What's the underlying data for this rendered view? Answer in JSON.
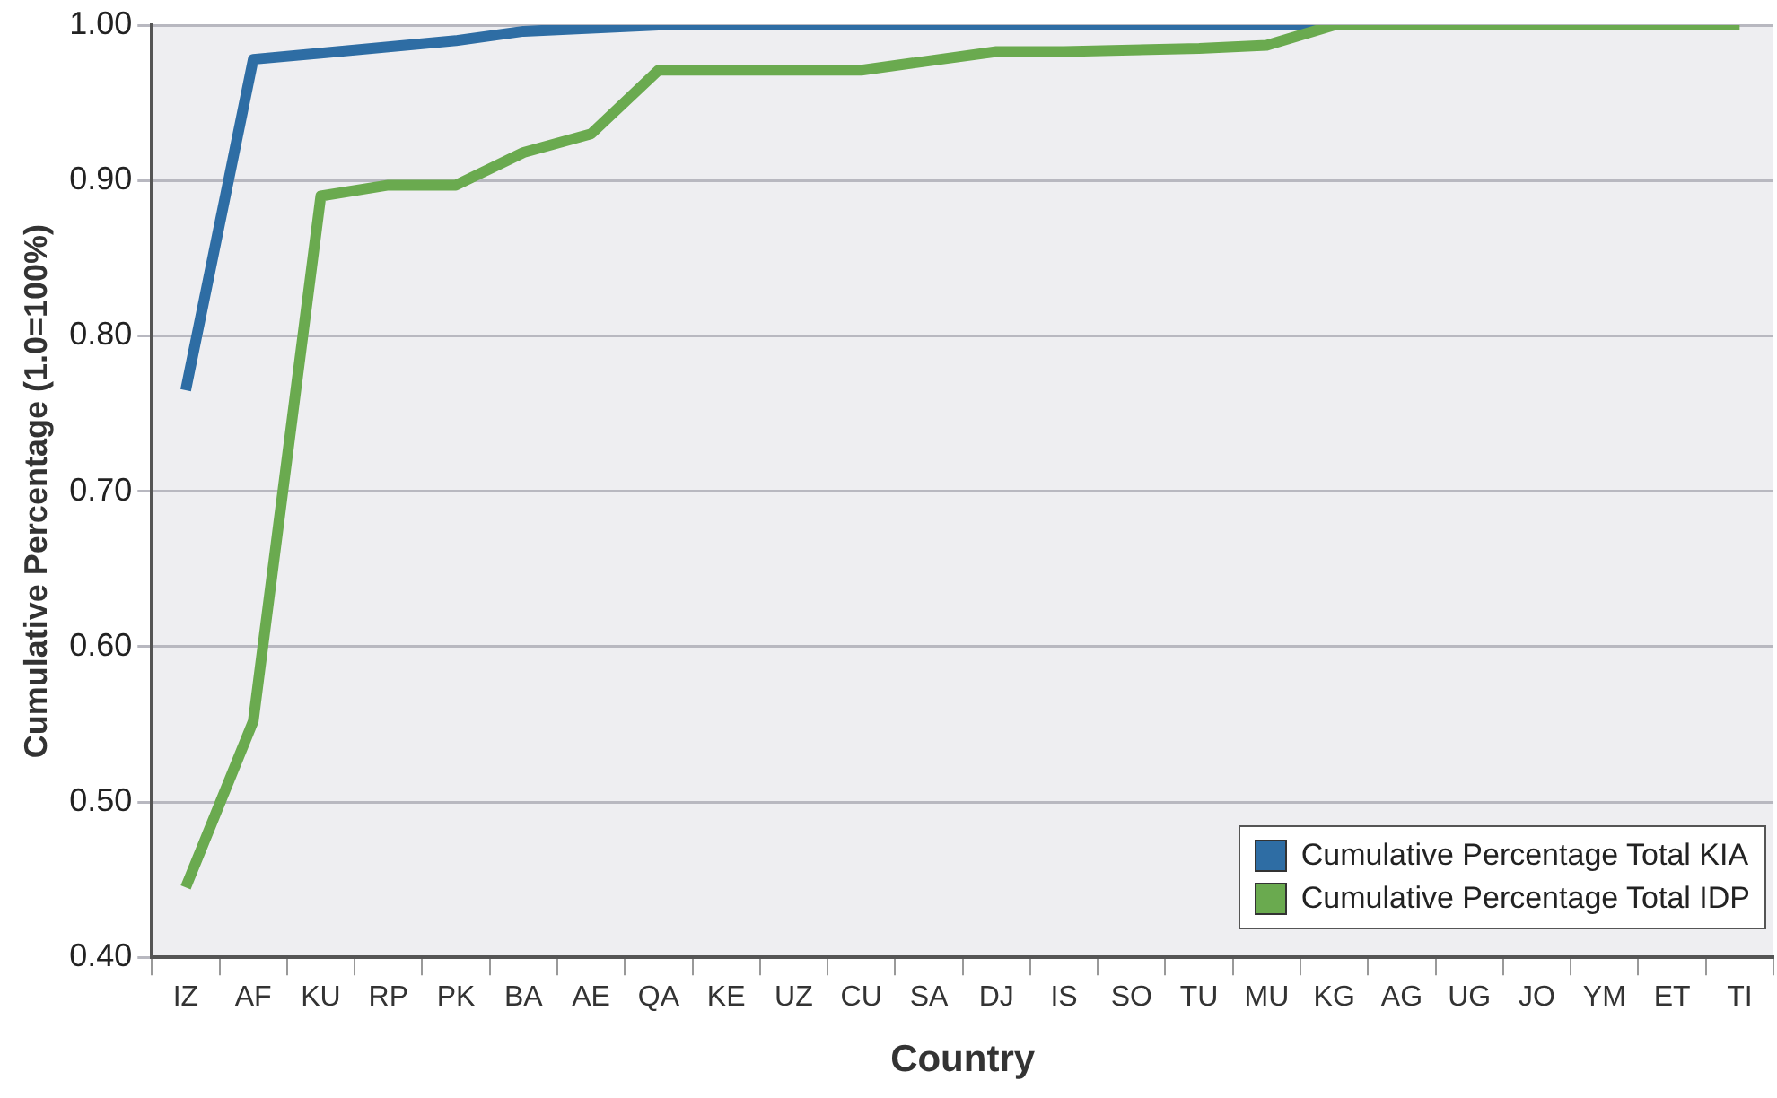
{
  "chart_data": {
    "type": "line",
    "xlabel": "Country",
    "ylabel": "Cumulative Percentage (1.0=100%)",
    "categories": [
      "IZ",
      "AF",
      "KU",
      "RP",
      "PK",
      "BA",
      "AE",
      "QA",
      "KE",
      "UZ",
      "CU",
      "SA",
      "DJ",
      "IS",
      "SO",
      "TU",
      "MU",
      "KG",
      "AG",
      "UG",
      "JO",
      "YM",
      "ET",
      "TI"
    ],
    "series": [
      {
        "name": "Cumulative Percentage Total KIA",
        "color": "#2e6da4",
        "values": [
          0.765,
          0.978,
          0.982,
          0.986,
          0.99,
          0.996,
          0.998,
          1.0,
          1.0,
          1.0,
          1.0,
          1.0,
          1.0,
          1.0,
          1.0,
          1.0,
          1.0,
          1.0,
          null,
          null,
          null,
          null,
          null,
          null
        ]
      },
      {
        "name": "Cumulative Percentage Total IDP",
        "color": "#6aaa4f",
        "values": [
          0.445,
          0.552,
          0.89,
          0.897,
          0.897,
          0.918,
          0.93,
          0.971,
          0.971,
          0.971,
          0.971,
          0.977,
          0.983,
          0.983,
          0.984,
          0.985,
          0.987,
          1.0,
          1.0,
          1.0,
          1.0,
          1.0,
          1.0,
          1.0
        ]
      }
    ],
    "ylim": [
      0.4,
      1.0
    ],
    "yticks": [
      {
        "value": 0.4,
        "label": "0.40"
      },
      {
        "value": 0.5,
        "label": "0.50"
      },
      {
        "value": 0.6,
        "label": "0.60"
      },
      {
        "value": 0.7,
        "label": "0.70"
      },
      {
        "value": 0.8,
        "label": "0.80"
      },
      {
        "value": 0.9,
        "label": "0.90"
      },
      {
        "value": 1.0,
        "label": "1.00"
      }
    ],
    "grid": "y",
    "legend": "bottom right",
    "marker": "none",
    "line_style": "solid"
  }
}
